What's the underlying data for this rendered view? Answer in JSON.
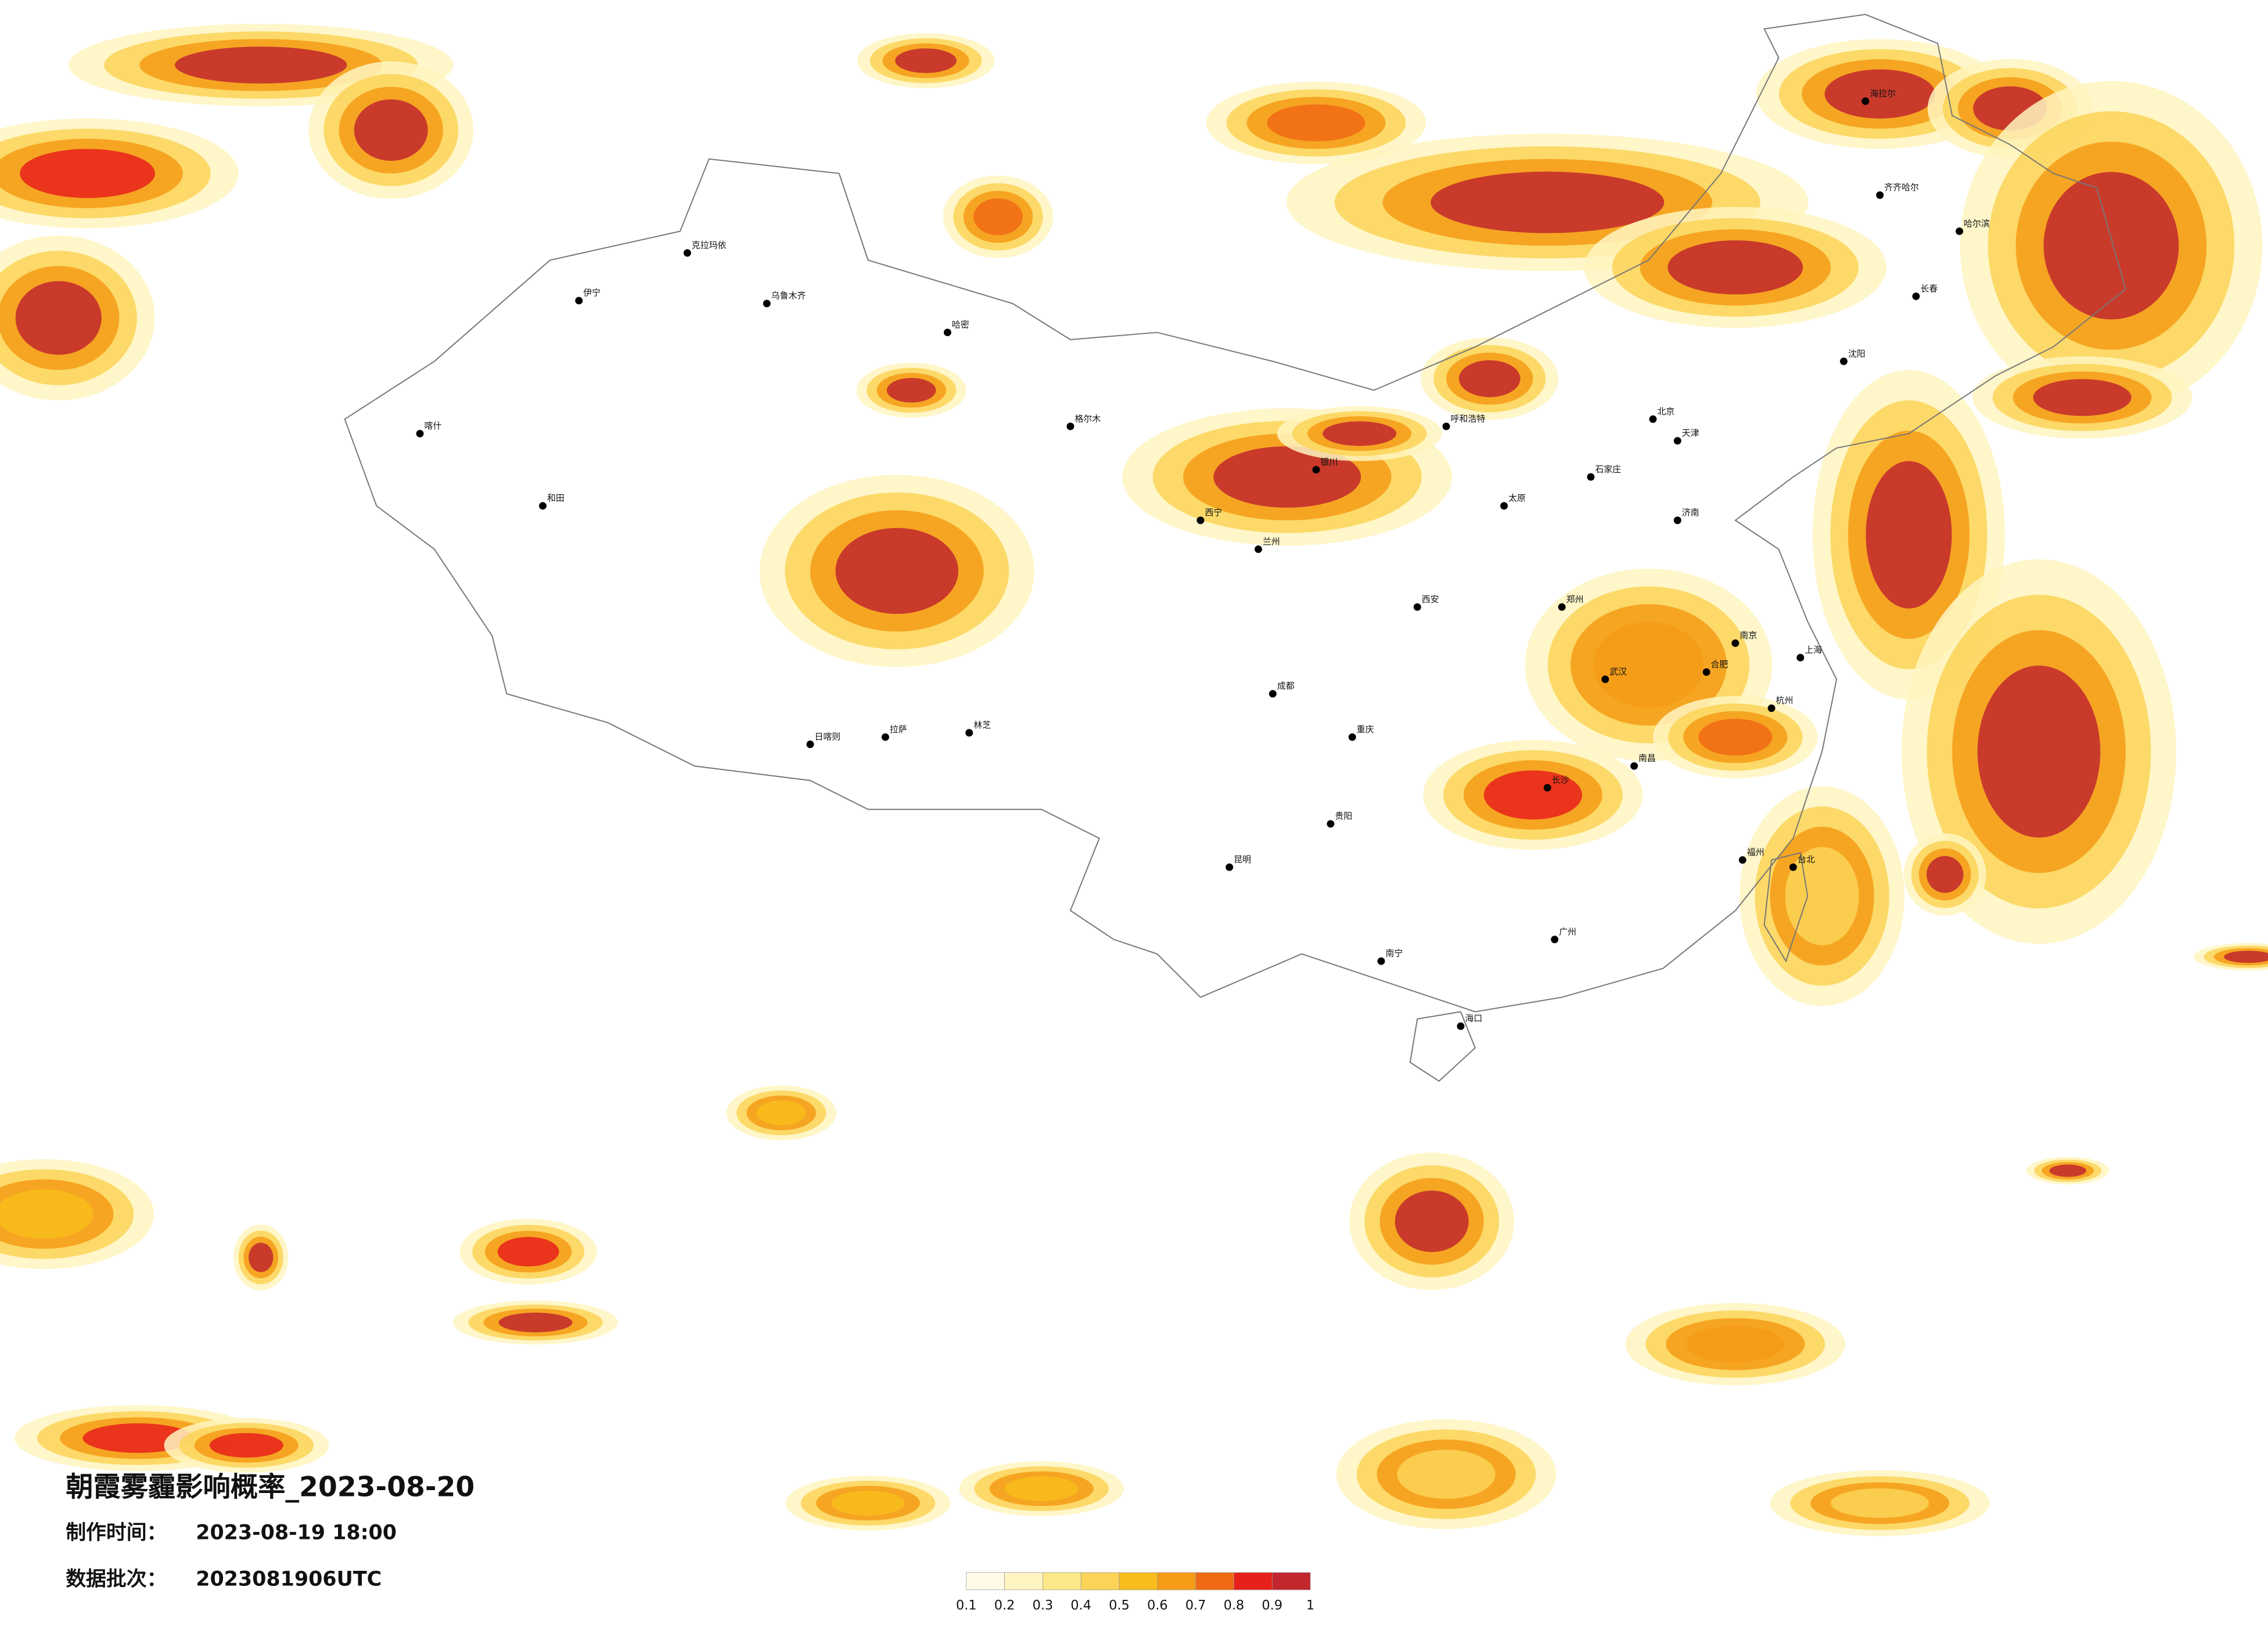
{
  "title": "朝霞雾霾影响概率_2023-08-20",
  "production_time_label": "制作时间：",
  "production_time": "2023-08-19 18:00",
  "batch_label": "数据批次：",
  "batch": "2023081906UTC",
  "legend": {
    "ticks": [
      0.1,
      0.2,
      0.3,
      0.4,
      0.5,
      0.6,
      0.7,
      0.8,
      0.9,
      1
    ],
    "colors": [
      "#fffbe8",
      "#fff5c0",
      "#fde98a",
      "#fbd457",
      "#f8bd1a",
      "#f59b16",
      "#f06a14",
      "#e8201a",
      "#c1272d"
    ]
  },
  "cities": [
    "喀什",
    "和田",
    "克拉玛依",
    "乌鲁木齐",
    "哈密",
    "伊宁",
    "日喀则",
    "拉萨",
    "林芝",
    "格尔木",
    "西宁",
    "兰州",
    "银川",
    "呼和浩特",
    "太原",
    "石家庄",
    "北京",
    "天津",
    "济南",
    "郑州",
    "西安",
    "成都",
    "重庆",
    "贵阳",
    "昆明",
    "南宁",
    "海口",
    "广州",
    "长沙",
    "武汉",
    "南昌",
    "合肥",
    "南京",
    "上海",
    "杭州",
    "福州",
    "台北",
    "沈阳",
    "长春",
    "哈尔滨",
    "海拉尔",
    "齐齐哈尔"
  ]
}
